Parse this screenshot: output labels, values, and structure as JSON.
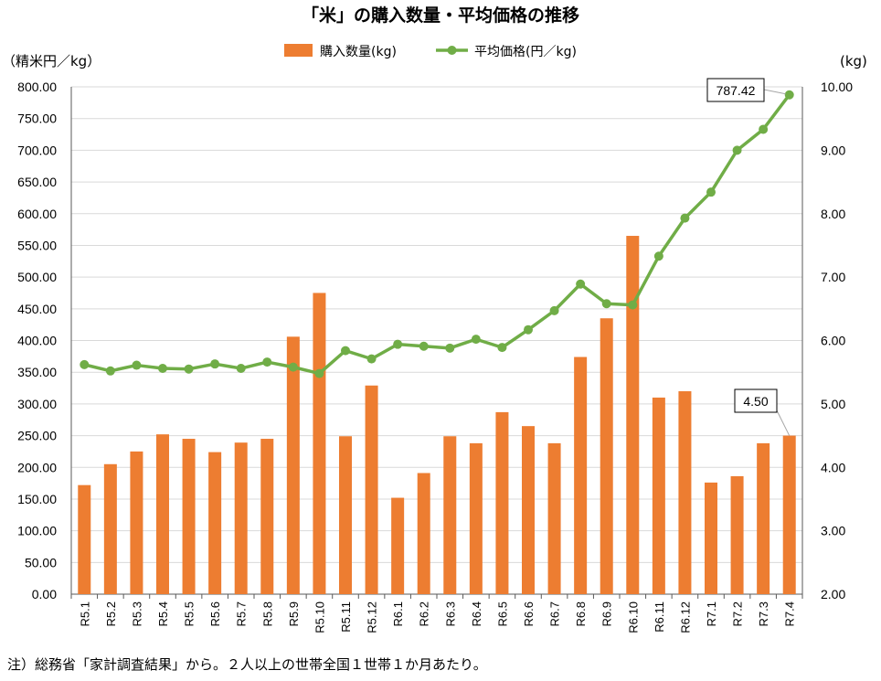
{
  "note": "注）総務省「家計調査結果」から。２人以上の世帯全国１世帯１か月あたり。",
  "chart_data": {
    "type": "bar+line",
    "title": "「米」の購入数量・平均価格の推移",
    "left_axis_label": "（精米円／kg）",
    "right_axis_label": "(kg)",
    "left_ylim": [
      0,
      800
    ],
    "right_ylim": [
      2,
      10
    ],
    "left_ticks": [
      "0.00",
      "50.00",
      "100.00",
      "150.00",
      "200.00",
      "250.00",
      "300.00",
      "350.00",
      "400.00",
      "450.00",
      "500.00",
      "550.00",
      "600.00",
      "650.00",
      "700.00",
      "750.00",
      "800.00"
    ],
    "right_ticks": [
      "2.00",
      "3.00",
      "4.00",
      "5.00",
      "6.00",
      "7.00",
      "8.00",
      "9.00",
      "10.00"
    ],
    "grid": "horizontal",
    "legend_position": "top-center",
    "categories": [
      "R5.1",
      "R5.2",
      "R5.3",
      "R5.4",
      "R5.5",
      "R5.6",
      "R5.7",
      "R5.8",
      "R5.9",
      "R5.10",
      "R5.11",
      "R5.12",
      "R6.1",
      "R6.2",
      "R6.3",
      "R6.4",
      "R6.5",
      "R6.6",
      "R6.7",
      "R6.8",
      "R6.9",
      "R6.10",
      "R6.11",
      "R6.12",
      "R7.1",
      "R7.2",
      "R7.3",
      "R7.4"
    ],
    "series": [
      {
        "name": "購入数量(kg)",
        "type": "bar",
        "axis": "right",
        "color": "#ED7D31",
        "values": [
          3.72,
          4.05,
          4.25,
          4.52,
          4.45,
          4.24,
          4.39,
          4.45,
          6.06,
          6.75,
          4.49,
          5.29,
          3.52,
          3.91,
          4.49,
          4.38,
          4.87,
          4.65,
          4.38,
          5.74,
          6.35,
          7.65,
          5.1,
          5.2,
          3.76,
          3.86,
          4.38,
          4.5
        ]
      },
      {
        "name": "平均価格(円／kg)",
        "type": "line",
        "axis": "left",
        "color": "#70AD47",
        "values": [
          362,
          352,
          361,
          356,
          355,
          363,
          356,
          366,
          358,
          348,
          384,
          371,
          394,
          391,
          388,
          402,
          389,
          417,
          447,
          489,
          458,
          456,
          533,
          593,
          634,
          700,
          733,
          787.42
        ]
      }
    ],
    "callouts": [
      {
        "label": "787.42"
      },
      {
        "label": "4.50"
      }
    ]
  }
}
